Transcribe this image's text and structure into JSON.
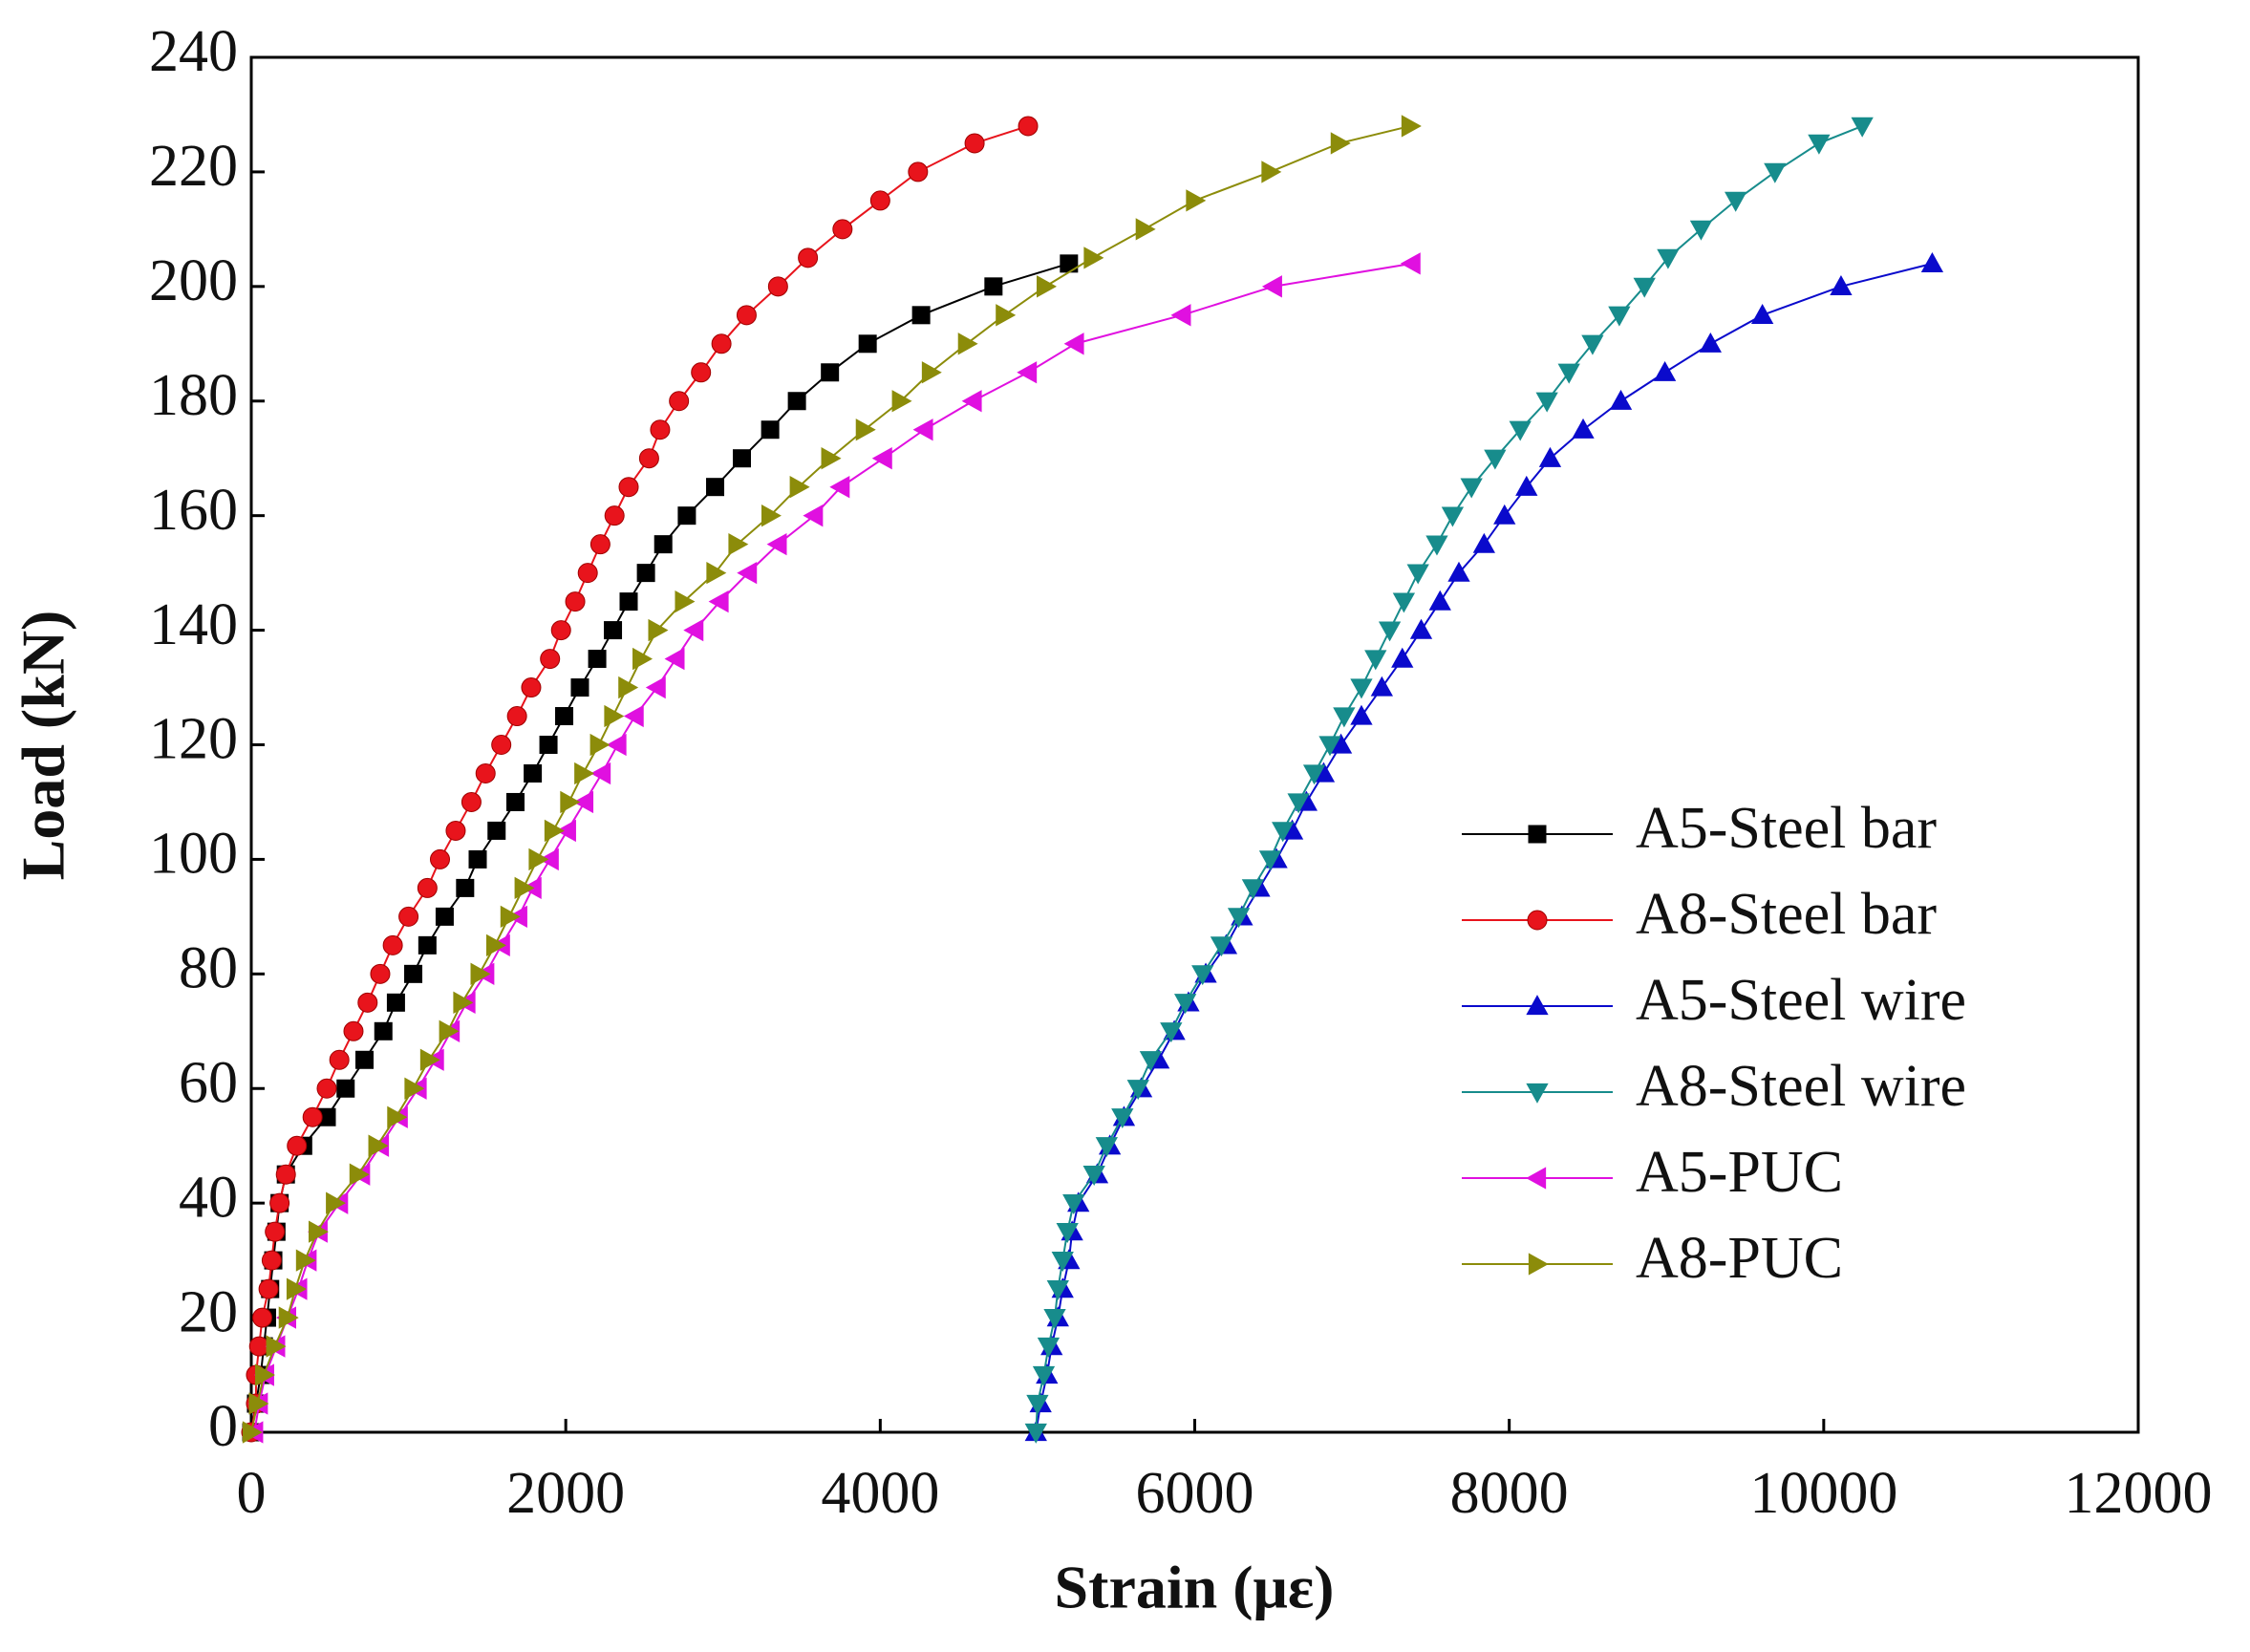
{
  "chart_data": {
    "type": "line",
    "xlabel": "Strain (με)",
    "ylabel": "Load (kN)",
    "xlim": [
      0,
      12000
    ],
    "ylim": [
      0,
      240
    ],
    "xticks": [
      0,
      2000,
      4000,
      6000,
      8000,
      10000,
      12000
    ],
    "yticks": [
      0,
      20,
      40,
      60,
      80,
      100,
      120,
      140,
      160,
      180,
      200,
      220,
      240
    ],
    "grid": false,
    "legend": "lower right",
    "series": [
      {
        "name": "A5-Steel bar",
        "color": "#000000",
        "marker": "square",
        "x": [
          0,
          30,
          60,
          80,
          100,
          120,
          140,
          160,
          180,
          220,
          330,
          480,
          600,
          720,
          840,
          920,
          1030,
          1120,
          1230,
          1360,
          1440,
          1560,
          1680,
          1790,
          1890,
          1990,
          2090,
          2200,
          2300,
          2400,
          2510,
          2620,
          2770,
          2950,
          3120,
          3300,
          3470,
          3680,
          3920,
          4260,
          4720,
          5200
        ],
        "values": [
          0,
          5,
          10,
          15,
          20,
          25,
          30,
          35,
          40,
          45,
          50,
          55,
          60,
          65,
          70,
          75,
          80,
          85,
          90,
          95,
          100,
          105,
          110,
          115,
          120,
          125,
          130,
          135,
          140,
          145,
          150,
          155,
          160,
          165,
          170,
          175,
          180,
          185,
          190,
          195,
          200,
          204
        ]
      },
      {
        "name": "A8-Steel bar",
        "color": "#e8141c",
        "marker": "circle",
        "x": [
          0,
          30,
          30,
          50,
          70,
          110,
          130,
          150,
          180,
          220,
          290,
          390,
          480,
          560,
          650,
          740,
          820,
          900,
          1000,
          1120,
          1200,
          1300,
          1400,
          1490,
          1590,
          1690,
          1780,
          1900,
          1970,
          2060,
          2140,
          2220,
          2310,
          2400,
          2530,
          2600,
          2720,
          2860,
          2990,
          3150,
          3350,
          3540,
          3760,
          4000,
          4240,
          4600,
          4940
        ],
        "values": [
          0,
          5,
          10,
          15,
          20,
          25,
          30,
          35,
          40,
          45,
          50,
          55,
          60,
          65,
          70,
          75,
          80,
          85,
          90,
          95,
          100,
          105,
          110,
          115,
          120,
          125,
          130,
          135,
          140,
          145,
          150,
          155,
          160,
          165,
          170,
          175,
          180,
          185,
          190,
          195,
          200,
          205,
          210,
          215,
          220,
          225,
          228
        ]
      },
      {
        "name": "A5-Steel wire",
        "color": "#0a0acc",
        "marker": "triangle-up",
        "x": [
          4990,
          5020,
          5060,
          5090,
          5130,
          5160,
          5200,
          5220,
          5260,
          5380,
          5460,
          5550,
          5660,
          5770,
          5870,
          5960,
          6070,
          6200,
          6300,
          6410,
          6520,
          6620,
          6710,
          6820,
          6930,
          7060,
          7190,
          7320,
          7440,
          7560,
          7680,
          7840,
          7970,
          8110,
          8260,
          8470,
          8710,
          8990,
          9280,
          9610,
          10110,
          10690
        ],
        "values": [
          0,
          5,
          10,
          15,
          20,
          25,
          30,
          35,
          40,
          45,
          50,
          55,
          60,
          65,
          70,
          75,
          80,
          85,
          90,
          95,
          100,
          105,
          110,
          115,
          120,
          125,
          130,
          135,
          140,
          145,
          150,
          155,
          160,
          165,
          170,
          175,
          180,
          185,
          190,
          195,
          200,
          204
        ]
      },
      {
        "name": "A8-Steel wire",
        "color": "#178c8c",
        "marker": "triangle-down",
        "x": [
          4990,
          5000,
          5040,
          5070,
          5110,
          5130,
          5160,
          5190,
          5230,
          5360,
          5440,
          5540,
          5640,
          5720,
          5850,
          5940,
          6050,
          6170,
          6280,
          6370,
          6480,
          6560,
          6660,
          6760,
          6860,
          6950,
          7060,
          7150,
          7240,
          7330,
          7420,
          7540,
          7640,
          7760,
          7910,
          8070,
          8240,
          8380,
          8530,
          8700,
          8860,
          9010,
          9220,
          9440,
          9690,
          9970,
          10245
        ],
        "values": [
          0,
          5,
          10,
          15,
          20,
          25,
          30,
          35,
          40,
          45,
          50,
          55,
          60,
          65,
          70,
          75,
          80,
          85,
          90,
          95,
          100,
          105,
          110,
          115,
          120,
          125,
          130,
          135,
          140,
          145,
          150,
          155,
          160,
          165,
          170,
          175,
          180,
          185,
          190,
          195,
          200,
          205,
          210,
          215,
          220,
          225,
          228
        ]
      },
      {
        "name": "A5-PUC",
        "color": "#e010e0",
        "marker": "triangle-left",
        "x": [
          20,
          50,
          90,
          160,
          230,
          300,
          360,
          430,
          560,
          700,
          820,
          940,
          1060,
          1170,
          1270,
          1370,
          1490,
          1590,
          1700,
          1790,
          1900,
          2010,
          2120,
          2230,
          2330,
          2440,
          2580,
          2700,
          2820,
          2980,
          3160,
          3350,
          3580,
          3750,
          4020,
          4280,
          4590,
          4940,
          5240,
          5920,
          6500,
          7380
        ],
        "values": [
          0,
          5,
          10,
          15,
          20,
          25,
          30,
          35,
          40,
          45,
          50,
          55,
          60,
          65,
          70,
          75,
          80,
          85,
          90,
          95,
          100,
          105,
          110,
          115,
          120,
          125,
          130,
          135,
          140,
          145,
          150,
          155,
          160,
          165,
          170,
          175,
          180,
          185,
          190,
          195,
          200,
          204
        ]
      },
      {
        "name": "A8-PUC",
        "color": "#8c8c0a",
        "marker": "triangle-right",
        "x": [
          0,
          40,
          80,
          150,
          230,
          280,
          340,
          420,
          530,
          680,
          800,
          920,
          1030,
          1130,
          1250,
          1340,
          1450,
          1550,
          1640,
          1730,
          1820,
          1920,
          2020,
          2110,
          2210,
          2300,
          2390,
          2480,
          2580,
          2750,
          2950,
          3090,
          3300,
          3480,
          3680,
          3900,
          4130,
          4320,
          4550,
          4790,
          5050,
          5350,
          5680,
          6000,
          6480,
          6920,
          7370
        ],
        "values": [
          0,
          5,
          10,
          15,
          20,
          25,
          30,
          35,
          40,
          45,
          50,
          55,
          60,
          65,
          70,
          75,
          80,
          85,
          90,
          95,
          100,
          105,
          110,
          115,
          120,
          125,
          130,
          135,
          140,
          145,
          150,
          155,
          160,
          165,
          170,
          175,
          180,
          185,
          190,
          195,
          200,
          205,
          210,
          215,
          220,
          225,
          228
        ]
      }
    ]
  }
}
